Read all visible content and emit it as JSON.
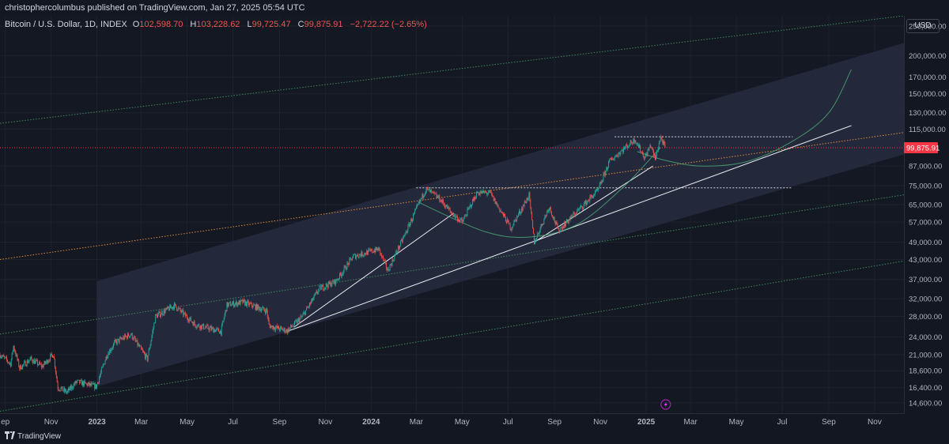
{
  "publish_line": "christophercolumbus published on TradingView.com, Jan 27, 2025 05:54 UTC",
  "legend": {
    "symbol": "Bitcoin / U.S. Dollar, 1D, INDEX",
    "open_label": "O",
    "open": "102,598.70",
    "high_label": "H",
    "high": "103,228.62",
    "low_label": "L",
    "low": "99,725.47",
    "close_label": "C",
    "close": "99,875.91",
    "change": "−2,722.22 (−2.65%)"
  },
  "currency": "USD",
  "footer": {
    "logo_icon": "tradingview-logo-icon",
    "brand": "TradingView"
  },
  "colors": {
    "background": "#131722",
    "up_candle": "#26a69a",
    "down_candle": "#ef5350",
    "channel_fill": "#2a2e44",
    "price_badge": "#f23645"
  },
  "chart_data": {
    "type": "candlestick",
    "title": "Bitcoin / U.S. Dollar, 1D, INDEX",
    "y_scale": "log",
    "ylim": [
      13500,
      270000
    ],
    "current_price": 99875.91,
    "current_price_label": "99,875.91",
    "y_ticks": [
      {
        "value": 250000,
        "label": "250,000.00"
      },
      {
        "value": 200000,
        "label": "200,000.00"
      },
      {
        "value": 170000,
        "label": "170,000.00"
      },
      {
        "value": 150000,
        "label": "150,000.00"
      },
      {
        "value": 130000,
        "label": "130,000.00"
      },
      {
        "value": 115000,
        "label": "115,000.00"
      },
      {
        "value": 87000,
        "label": "87,000.00"
      },
      {
        "value": 75000,
        "label": "75,000.00"
      },
      {
        "value": 65000,
        "label": "65,000.00"
      },
      {
        "value": 57000,
        "label": "57,000.00"
      },
      {
        "value": 49000,
        "label": "49,000.00"
      },
      {
        "value": 43000,
        "label": "43,000.00"
      },
      {
        "value": 37000,
        "label": "37,000.00"
      },
      {
        "value": 32000,
        "label": "32,000.00"
      },
      {
        "value": 28000,
        "label": "28,000.00"
      },
      {
        "value": 24000,
        "label": "24,000.00"
      },
      {
        "value": 21000,
        "label": "21,000.00"
      },
      {
        "value": 18600,
        "label": "18,600.00"
      },
      {
        "value": 16400,
        "label": "16,400.00"
      },
      {
        "value": 14600,
        "label": "14,600.00"
      }
    ],
    "x_range": [
      "2022-08-25",
      "2025-12-10"
    ],
    "x_ticks": [
      {
        "date": "2022-09-01",
        "label": "ep"
      },
      {
        "date": "2022-11-01",
        "label": "Nov"
      },
      {
        "date": "2023-01-01",
        "label": "2023",
        "bold": true
      },
      {
        "date": "2023-03-01",
        "label": "Mar"
      },
      {
        "date": "2023-05-01",
        "label": "May"
      },
      {
        "date": "2023-07-01",
        "label": "Jul"
      },
      {
        "date": "2023-09-01",
        "label": "Sep"
      },
      {
        "date": "2023-11-01",
        "label": "Nov"
      },
      {
        "date": "2024-01-01",
        "label": "2024",
        "bold": true
      },
      {
        "date": "2024-03-01",
        "label": "Mar"
      },
      {
        "date": "2024-05-01",
        "label": "May"
      },
      {
        "date": "2024-07-01",
        "label": "Jul"
      },
      {
        "date": "2024-09-01",
        "label": "Sep"
      },
      {
        "date": "2024-11-01",
        "label": "Nov"
      },
      {
        "date": "2025-01-01",
        "label": "2025",
        "bold": true
      },
      {
        "date": "2025-03-01",
        "label": "Mar"
      },
      {
        "date": "2025-05-01",
        "label": "May"
      },
      {
        "date": "2025-07-01",
        "label": "Jul"
      },
      {
        "date": "2025-09-01",
        "label": "Sep"
      },
      {
        "date": "2025-11-01",
        "label": "Nov"
      }
    ],
    "price_path": [
      [
        "2022-08-25",
        21000
      ],
      [
        "2022-09-08",
        19600
      ],
      [
        "2022-09-12",
        22400
      ],
      [
        "2022-09-20",
        19000
      ],
      [
        "2022-10-05",
        20300
      ],
      [
        "2022-10-20",
        19200
      ],
      [
        "2022-11-04",
        21100
      ],
      [
        "2022-11-10",
        16400
      ],
      [
        "2022-11-22",
        15800
      ],
      [
        "2022-12-05",
        17100
      ],
      [
        "2022-12-31",
        16500
      ],
      [
        "2023-01-14",
        20900
      ],
      [
        "2023-01-25",
        23000
      ],
      [
        "2023-02-15",
        24500
      ],
      [
        "2023-03-09",
        20300
      ],
      [
        "2023-03-20",
        28000
      ],
      [
        "2023-04-14",
        30400
      ],
      [
        "2023-05-12",
        26300
      ],
      [
        "2023-06-15",
        25000
      ],
      [
        "2023-06-23",
        30500
      ],
      [
        "2023-07-14",
        31200
      ],
      [
        "2023-08-15",
        29200
      ],
      [
        "2023-08-18",
        26100
      ],
      [
        "2023-09-11",
        25100
      ],
      [
        "2023-10-01",
        27900
      ],
      [
        "2023-10-24",
        34500
      ],
      [
        "2023-11-15",
        36500
      ],
      [
        "2023-12-08",
        44000
      ],
      [
        "2024-01-11",
        46500
      ],
      [
        "2024-01-23",
        39500
      ],
      [
        "2024-02-15",
        52000
      ],
      [
        "2024-03-05",
        66000
      ],
      [
        "2024-03-14",
        73200
      ],
      [
        "2024-04-01",
        68000
      ],
      [
        "2024-04-17",
        61000
      ],
      [
        "2024-05-01",
        57000
      ],
      [
        "2024-05-21",
        71200
      ],
      [
        "2024-06-07",
        71000
      ],
      [
        "2024-07-05",
        54500
      ],
      [
        "2024-07-29",
        69800
      ],
      [
        "2024-08-05",
        49000
      ],
      [
        "2024-08-25",
        64000
      ],
      [
        "2024-09-06",
        53500
      ],
      [
        "2024-10-29",
        72500
      ],
      [
        "2024-11-13",
        90000
      ],
      [
        "2024-12-05",
        100500
      ],
      [
        "2024-12-17",
        106500
      ],
      [
        "2024-12-30",
        92500
      ],
      [
        "2025-01-07",
        102000
      ],
      [
        "2025-01-13",
        91500
      ],
      [
        "2025-01-20",
        108500
      ],
      [
        "2025-01-26",
        99875.91
      ]
    ],
    "annotations": {
      "channel": {
        "start": "2023-01-01",
        "end": "2025-12-10",
        "upper_start": 36500,
        "upper_end": 220000,
        "lower_start": 16500,
        "lower_end": 95000
      },
      "orange_dotted_line": {
        "x1": "2022-08-25",
        "y1": 43000,
        "x2": "2025-12-10",
        "y2": 112000
      },
      "green_dotted_lines": [
        {
          "x1": "2022-08-25",
          "y1": 120000,
          "x2": "2025-12-10",
          "y2": 270000
        },
        {
          "x1": "2022-08-25",
          "y1": 24500,
          "x2": "2025-12-10",
          "y2": 70000
        },
        {
          "x1": "2022-08-25",
          "y1": 13700,
          "x2": "2025-12-10",
          "y2": 42500
        }
      ],
      "resistance_lines": [
        {
          "x1": "2024-03-01",
          "x2": "2025-07-15",
          "y": 73800
        },
        {
          "x1": "2024-11-20",
          "x2": "2025-07-15",
          "y": 108500
        }
      ],
      "trend_lines": [
        {
          "x1": "2023-09-11",
          "y1": 25000,
          "x2": "2025-10-01",
          "y2": 118000
        },
        {
          "x1": "2023-09-20",
          "y1": 25800,
          "x2": "2024-04-20",
          "y2": 61000
        },
        {
          "x1": "2024-08-05",
          "y1": 49000,
          "x2": "2025-01-10",
          "y2": 87000
        }
      ],
      "green_curves": [
        [
          [
            "2024-03-05",
            66000
          ],
          [
            "2024-06-01",
            53000
          ],
          [
            "2024-08-01",
            51000
          ],
          [
            "2024-10-01",
            56000
          ],
          [
            "2024-12-01",
            74000
          ],
          [
            "2025-01-20",
            100000
          ]
        ],
        [
          [
            "2024-12-20",
            97000
          ],
          [
            "2025-01-25",
            91000
          ],
          [
            "2025-03-15",
            87000
          ],
          [
            "2025-05-15",
            90000
          ],
          [
            "2025-07-15",
            105000
          ],
          [
            "2025-09-01",
            130000
          ],
          [
            "2025-10-01",
            180000
          ]
        ]
      ]
    }
  }
}
